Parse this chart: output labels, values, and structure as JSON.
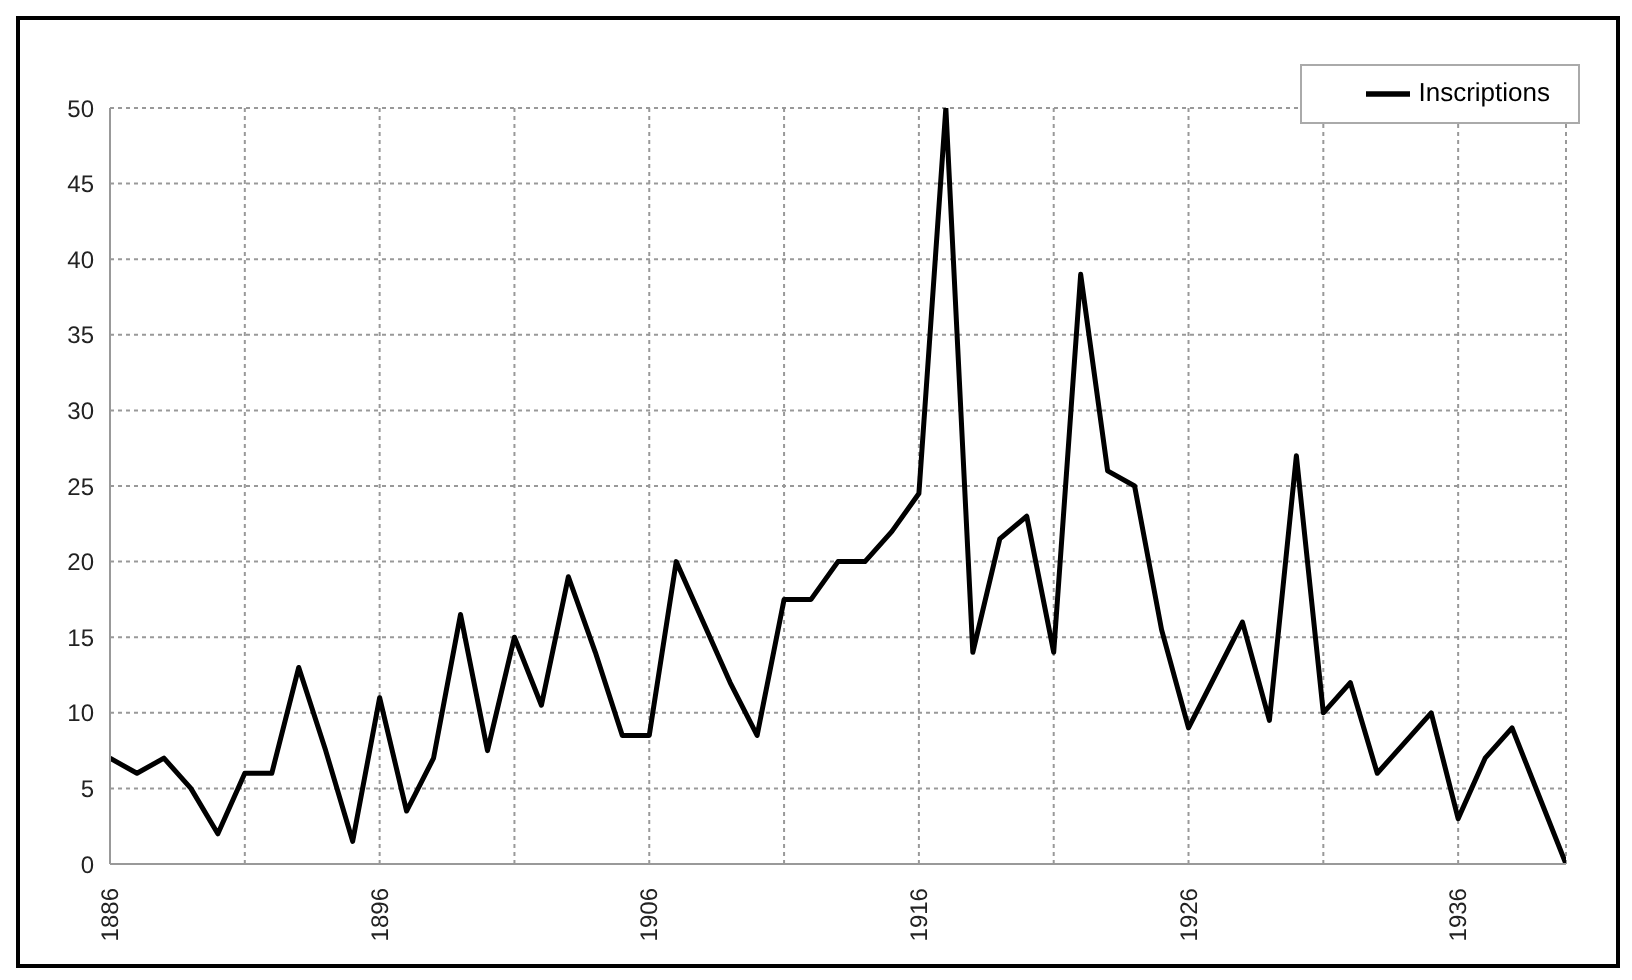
{
  "chart_data": {
    "type": "line",
    "x": [
      1886,
      1887,
      1888,
      1889,
      1890,
      1891,
      1892,
      1893,
      1894,
      1895,
      1896,
      1897,
      1898,
      1899,
      1900,
      1901,
      1902,
      1903,
      1904,
      1905,
      1906,
      1907,
      1908,
      1909,
      1910,
      1911,
      1912,
      1913,
      1914,
      1915,
      1916,
      1917,
      1918,
      1919,
      1920,
      1921,
      1922,
      1923,
      1924,
      1925,
      1926,
      1927,
      1928,
      1929,
      1930,
      1931,
      1932,
      1933,
      1934,
      1935,
      1936,
      1937,
      1938,
      1939,
      1940
    ],
    "series": [
      {
        "name": "Inscriptions",
        "color": "#000000",
        "values": [
          7,
          6,
          7,
          5,
          2,
          6,
          6,
          13,
          7.5,
          1.5,
          11,
          3.5,
          7,
          16.5,
          7.5,
          15,
          10.5,
          19,
          14,
          8.5,
          8.5,
          20,
          16,
          12,
          8.5,
          17.5,
          17.5,
          20,
          20,
          22,
          24.5,
          50,
          14,
          21.5,
          23,
          14,
          39,
          26,
          25,
          15.5,
          9,
          12.5,
          16,
          9.5,
          27,
          10,
          12,
          6,
          8,
          10,
          3,
          7,
          9,
          4.5,
          0
        ]
      }
    ],
    "xlim": [
      1886,
      1940
    ],
    "xticks": [
      1886,
      {
        "value": 1891,
        "label": null
      },
      1896,
      {
        "value": 1901,
        "label": null
      },
      1906,
      {
        "value": 1911,
        "label": null
      },
      1916,
      {
        "value": 1921,
        "label": null
      },
      1926,
      {
        "value": 1931,
        "label": null
      },
      1936
    ],
    "ylim": [
      0,
      50
    ],
    "yticks": [
      0,
      5,
      10,
      15,
      20,
      25,
      30,
      35,
      40,
      45,
      50
    ],
    "grid": true,
    "legend": "top right",
    "marker": "none",
    "line_style": "solid"
  }
}
